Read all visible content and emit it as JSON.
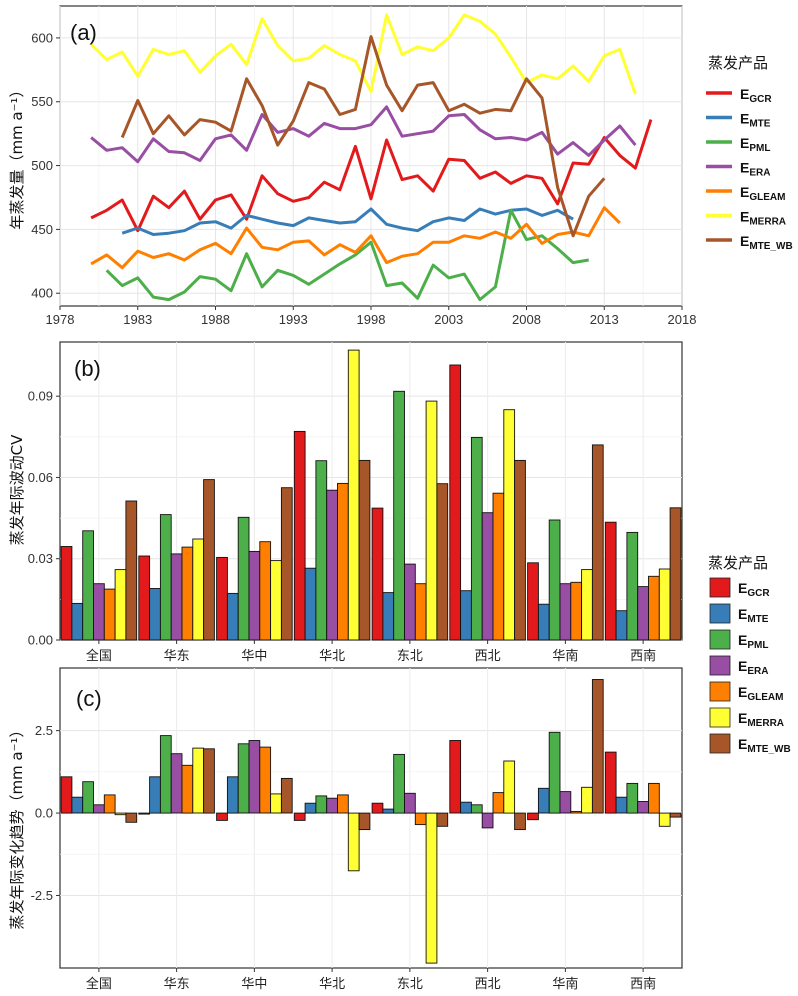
{
  "colors": {
    "E_GCR": "#e31a1c",
    "E_MTE": "#377eb8",
    "E_PML": "#4daf4a",
    "E_ERA": "#984ea3",
    "E_GLEAM": "#ff7f00",
    "E_MERRA": "#ffff33",
    "E_MTE_WB": "#a65628"
  },
  "legend": {
    "title": "蒸发产品",
    "entries": [
      {
        "key": "E_GCR",
        "main": "E",
        "sub": "GCR"
      },
      {
        "key": "E_MTE",
        "main": "E",
        "sub": "MTE"
      },
      {
        "key": "E_PML",
        "main": "E",
        "sub": "PML"
      },
      {
        "key": "E_ERA",
        "main": "E",
        "sub": "ERA"
      },
      {
        "key": "E_GLEAM",
        "main": "E",
        "sub": "GLEAM"
      },
      {
        "key": "E_MERRA",
        "main": "E",
        "sub": "MERRA"
      },
      {
        "key": "E_MTE_WB",
        "main": "E",
        "sub": "MTE_WB"
      }
    ]
  },
  "chart_data": [
    {
      "type": "line",
      "panel_label": "(a)",
      "ylabel": "年蒸发量（mm a⁻¹）",
      "xlim": [
        1978,
        2018
      ],
      "ylim": [
        390,
        625
      ],
      "xticks": [
        1978,
        1983,
        1988,
        1993,
        1998,
        2003,
        2008,
        2013,
        2018
      ],
      "yticks": [
        400,
        450,
        500,
        550,
        600
      ],
      "grid": true,
      "series": [
        {
          "key": "E_GCR",
          "x_start": 1980,
          "values": [
            459,
            465,
            473,
            449,
            476,
            467,
            480,
            458,
            473,
            477,
            458,
            492,
            478,
            472,
            475,
            487,
            481,
            515,
            474,
            520,
            489,
            492,
            480,
            505,
            504,
            490,
            495,
            486,
            492,
            490,
            470,
            502,
            501,
            522,
            508,
            498,
            536
          ]
        },
        {
          "key": "E_MTE",
          "x_start": 1982,
          "values": [
            447,
            451,
            446,
            447,
            449,
            455,
            456,
            451,
            461,
            458,
            455,
            453,
            459,
            457,
            455,
            456,
            466,
            454,
            451,
            449,
            456,
            459,
            457,
            466,
            462,
            465,
            466,
            461,
            465,
            458
          ]
        },
        {
          "key": "E_PML",
          "x_start": 1981,
          "values": [
            418,
            406,
            412,
            397,
            395,
            401,
            413,
            411,
            402,
            431,
            405,
            418,
            414,
            407,
            415,
            423,
            430,
            440,
            406,
            408,
            396,
            422,
            412,
            415,
            395,
            405,
            465,
            442,
            445,
            435,
            424,
            426
          ]
        },
        {
          "key": "E_ERA",
          "x_start": 1980,
          "values": [
            522,
            512,
            514,
            503,
            521,
            511,
            510,
            504,
            521,
            524,
            512,
            540,
            526,
            529,
            523,
            533,
            529,
            529,
            532,
            546,
            523,
            525,
            527,
            539,
            540,
            528,
            521,
            522,
            520,
            526,
            509,
            518,
            508,
            520,
            531,
            516
          ]
        },
        {
          "key": "E_GLEAM",
          "x_start": 1980,
          "values": [
            423,
            430,
            420,
            433,
            428,
            431,
            426,
            434,
            439,
            431,
            451,
            436,
            434,
            440,
            441,
            430,
            438,
            432,
            445,
            424,
            429,
            431,
            440,
            440,
            445,
            443,
            448,
            443,
            454,
            439,
            446,
            448,
            445,
            467,
            455
          ]
        },
        {
          "key": "E_MERRA",
          "x_start": 1980,
          "values": [
            595,
            583,
            589,
            570,
            591,
            587,
            590,
            573,
            586,
            595,
            579,
            615,
            594,
            582,
            584,
            594,
            587,
            582,
            558,
            618,
            587,
            593,
            590,
            600,
            618,
            613,
            603,
            585,
            565,
            571,
            568,
            578,
            566,
            586,
            591,
            556
          ]
        },
        {
          "key": "E_MTE_WB",
          "x_start": 1982,
          "values": [
            522,
            551,
            525,
            539,
            524,
            536,
            534,
            527,
            568,
            547,
            516,
            535,
            565,
            560,
            540,
            544,
            601,
            563,
            543,
            563,
            565,
            543,
            548,
            541,
            544,
            543,
            568,
            553,
            483,
            445,
            476,
            490
          ]
        }
      ]
    },
    {
      "type": "bar",
      "panel_label": "(b)",
      "ylabel": "蒸发年际波动CV",
      "ylim": [
        0,
        0.11
      ],
      "yticks": [
        "0.00",
        "0.03",
        "0.06",
        "0.09"
      ],
      "ytick_values": [
        0,
        0.03,
        0.06,
        0.09
      ],
      "grid": true,
      "categories": [
        "全国",
        "华东",
        "华中",
        "华北",
        "东北",
        "西北",
        "华南",
        "西南"
      ],
      "series": [
        {
          "key": "E_GCR",
          "values": [
            0.0345,
            0.031,
            0.0305,
            0.077,
            0.0487,
            0.1015,
            0.0285,
            0.0435
          ]
        },
        {
          "key": "E_MTE",
          "values": [
            0.0135,
            0.019,
            0.0172,
            0.0265,
            0.0175,
            0.0182,
            0.0132,
            0.0108
          ]
        },
        {
          "key": "E_PML",
          "values": [
            0.0403,
            0.0463,
            0.0453,
            0.0662,
            0.0918,
            0.0748,
            0.0443,
            0.0397
          ]
        },
        {
          "key": "E_ERA",
          "values": [
            0.0208,
            0.0318,
            0.0327,
            0.0553,
            0.028,
            0.047,
            0.0208,
            0.0197
          ]
        },
        {
          "key": "E_GLEAM",
          "values": [
            0.0188,
            0.0343,
            0.0363,
            0.0578,
            0.0208,
            0.0542,
            0.0213,
            0.0235
          ]
        },
        {
          "key": "E_MERRA",
          "values": [
            0.026,
            0.0373,
            0.0293,
            0.107,
            0.0882,
            0.085,
            0.026,
            0.0262
          ]
        },
        {
          "key": "E_MTE_WB",
          "values": [
            0.0513,
            0.0592,
            0.0562,
            0.0663,
            0.0577,
            0.0663,
            0.072,
            0.0488
          ]
        }
      ]
    },
    {
      "type": "bar",
      "panel_label": "(c)",
      "ylabel": "蒸发年际变化趋势（mm a⁻¹）",
      "ylim": [
        -4.7,
        4.4
      ],
      "yticks": [
        "-2.5",
        "0.0",
        "2.5"
      ],
      "ytick_values": [
        -2.5,
        0,
        2.5
      ],
      "grid": true,
      "categories": [
        "全国",
        "华东",
        "华中",
        "华北",
        "东北",
        "西北",
        "华南",
        "西南"
      ],
      "series": [
        {
          "key": "E_GCR",
          "values": [
            1.1,
            -0.03,
            -0.22,
            -0.22,
            0.3,
            2.2,
            -0.2,
            1.85
          ]
        },
        {
          "key": "E_MTE",
          "values": [
            0.48,
            1.1,
            1.1,
            0.3,
            0.12,
            0.33,
            0.75,
            0.48
          ]
        },
        {
          "key": "E_PML",
          "values": [
            0.95,
            2.35,
            2.1,
            0.52,
            1.78,
            0.25,
            2.45,
            0.9
          ]
        },
        {
          "key": "E_ERA",
          "values": [
            0.25,
            1.8,
            2.2,
            0.45,
            0.6,
            -0.45,
            0.65,
            0.35
          ]
        },
        {
          "key": "E_GLEAM",
          "values": [
            0.55,
            1.45,
            2.0,
            0.55,
            -0.35,
            0.62,
            0.05,
            0.9
          ]
        },
        {
          "key": "E_MERRA",
          "values": [
            -0.05,
            1.97,
            0.58,
            -1.75,
            -4.55,
            1.58,
            0.78,
            -0.4
          ]
        },
        {
          "key": "E_MTE_WB",
          "values": [
            -0.28,
            1.95,
            1.05,
            -0.5,
            -0.4,
            -0.5,
            4.05,
            -0.12
          ]
        }
      ]
    }
  ]
}
